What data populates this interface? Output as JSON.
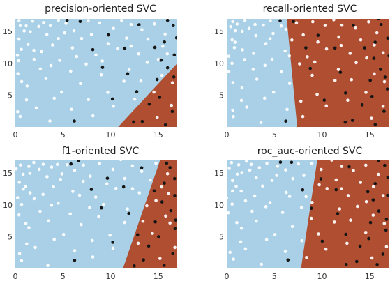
{
  "chart_data": [
    {
      "type": "scatter",
      "title": "precision-oriented SVC",
      "xlim": [
        0,
        17
      ],
      "ylim": [
        0,
        17
      ],
      "xticks": [
        0,
        5,
        10,
        15
      ],
      "yticks": [
        5,
        10,
        15
      ],
      "xtick_labels": [
        "0",
        "5",
        "10",
        "15"
      ],
      "ytick_labels": [
        "5",
        "10",
        "15"
      ],
      "boundary": [
        [
          10.8,
          0
        ],
        [
          17,
          10
        ]
      ],
      "positive_side": "right"
    },
    {
      "type": "scatter",
      "title": "recall-oriented SVC",
      "xlim": [
        0,
        17
      ],
      "ylim": [
        0,
        17
      ],
      "xticks": [
        0,
        5,
        10,
        15
      ],
      "yticks": [
        5,
        10,
        15
      ],
      "xtick_labels": [
        "0",
        "5",
        "10",
        "15"
      ],
      "ytick_labels": [
        "5",
        "10",
        "15"
      ],
      "boundary": [
        [
          7.4,
          0
        ],
        [
          6.3,
          17
        ]
      ],
      "positive_side": "right"
    },
    {
      "type": "scatter",
      "title": "f1-oriented SVC",
      "xlim": [
        0,
        17
      ],
      "ylim": [
        0,
        17
      ],
      "xticks": [
        0,
        5,
        10,
        15
      ],
      "yticks": [
        5,
        10,
        15
      ],
      "xtick_labels": [
        "0",
        "5",
        "10",
        "15"
      ],
      "ytick_labels": [
        "5",
        "10",
        "15"
      ],
      "boundary": [
        [
          11.3,
          0
        ],
        [
          15.2,
          17
        ]
      ],
      "positive_side": "right"
    },
    {
      "type": "scatter",
      "title": "roc_auc-oriented SVC",
      "xlim": [
        0,
        17
      ],
      "ylim": [
        0,
        17
      ],
      "xticks": [
        0,
        5,
        10,
        15
      ],
      "yticks": [
        5,
        10,
        15
      ],
      "xtick_labels": [
        "0",
        "5",
        "10",
        "15"
      ],
      "ytick_labels": [
        "5",
        "10",
        "15"
      ],
      "boundary": [
        [
          7.8,
          0
        ],
        [
          9.5,
          17
        ]
      ],
      "positive_side": "right"
    }
  ],
  "colors": {
    "negative_region": "#a9d0e6",
    "positive_region": "#b04e32",
    "negative_points": "#ffffff",
    "positive_points": "#151515"
  },
  "points": {
    "negative": [
      [
        0.3,
        15.8
      ],
      [
        0.6,
        16.5
      ],
      [
        0.9,
        14.9
      ],
      [
        1.2,
        16.1
      ],
      [
        0.4,
        13.6
      ],
      [
        1.5,
        15.2
      ],
      [
        0.8,
        12.4
      ],
      [
        1.9,
        16.7
      ],
      [
        0.2,
        11.3
      ],
      [
        1.1,
        13.1
      ],
      [
        2.3,
        15.6
      ],
      [
        0.5,
        10.2
      ],
      [
        1.7,
        12.0
      ],
      [
        2.8,
        16.3
      ],
      [
        0.3,
        8.6
      ],
      [
        3.1,
        14.3
      ],
      [
        2.0,
        10.8
      ],
      [
        3.6,
        15.9
      ],
      [
        4.0,
        12.9
      ],
      [
        4.4,
        16.6
      ],
      [
        2.6,
        9.1
      ],
      [
        5.1,
        14.7
      ],
      [
        4.7,
        10.5
      ],
      [
        5.5,
        16.1
      ],
      [
        3.3,
        7.6
      ],
      [
        6.0,
        12.2
      ],
      [
        6.4,
        15.3
      ],
      [
        1.4,
        6.4
      ],
      [
        7.0,
        13.9
      ],
      [
        7.4,
        16.5
      ],
      [
        5.7,
        8.8
      ],
      [
        8.1,
        14.6
      ],
      [
        8.5,
        11.1
      ],
      [
        9.0,
        16.3
      ],
      [
        6.8,
        6.7
      ],
      [
        9.5,
        13.3
      ],
      [
        10.1,
        15.7
      ],
      [
        4.1,
        4.6
      ],
      [
        10.6,
        12.4
      ],
      [
        11.1,
        16.9
      ],
      [
        8.8,
        8.1
      ],
      [
        11.7,
        14.1
      ],
      [
        12.3,
        16.2
      ],
      [
        2.1,
        3.2
      ],
      [
        12.8,
        11.7
      ],
      [
        13.4,
        15.4
      ],
      [
        9.7,
        5.3
      ],
      [
        14.1,
        13.7
      ],
      [
        6.1,
        2.6
      ],
      [
        14.7,
        16.4
      ],
      [
        0.7,
        1.4
      ],
      [
        11.8,
        9.2
      ],
      [
        3.6,
        0.7
      ],
      [
        8.2,
        1.7
      ],
      [
        15.3,
        12.8
      ],
      [
        13.2,
        7.4
      ],
      [
        5.0,
        5.4
      ],
      [
        10.4,
        3.1
      ],
      [
        7.6,
        9.7
      ],
      [
        12.7,
        4.2
      ],
      [
        15.6,
        8.3
      ],
      [
        14.4,
        5.6
      ],
      [
        16.2,
        11.6
      ],
      [
        16.6,
        3.4
      ],
      [
        15.1,
        1.6
      ],
      [
        13.8,
        9.9
      ],
      [
        1.3,
        4.1
      ],
      [
        2.8,
        11.6
      ],
      [
        4.6,
        13.8
      ],
      [
        9.2,
        10.3
      ],
      [
        11.4,
        7.2
      ],
      [
        6.6,
        11.3
      ],
      [
        0.9,
        7.1
      ],
      [
        3.9,
        9.8
      ],
      [
        12.1,
        12.6
      ],
      [
        15.9,
        14.8
      ],
      [
        16.4,
        6.9
      ],
      [
        0.4,
        2.6
      ],
      [
        7.9,
        4.2
      ],
      [
        14.9,
        10.7
      ]
    ],
    "positive": [
      [
        5.6,
        16.6
      ],
      [
        6.8,
        16.8
      ],
      [
        8.2,
        12.2
      ],
      [
        16.4,
        16.1
      ],
      [
        9.7,
        14.3
      ],
      [
        13.1,
        15.9
      ],
      [
        11.3,
        12.6
      ],
      [
        16.7,
        14.2
      ],
      [
        14.7,
        12.3
      ],
      [
        16.1,
        16.8
      ],
      [
        15.8,
        13.3
      ],
      [
        9.0,
        9.3
      ],
      [
        12.6,
        5.4
      ],
      [
        16.6,
        7.8
      ],
      [
        14.2,
        3.6
      ],
      [
        16.9,
        6.1
      ],
      [
        15.5,
        10.6
      ],
      [
        16.3,
        2.3
      ],
      [
        13.4,
        1.1
      ],
      [
        15.1,
        4.8
      ],
      [
        11.8,
        8.6
      ],
      [
        16.8,
        11.4
      ],
      [
        12.3,
        0.6
      ],
      [
        14.9,
        7.4
      ],
      [
        10.2,
        4.3
      ],
      [
        16.2,
        9.2
      ],
      [
        6.2,
        1.1
      ],
      [
        15.6,
        0.4
      ]
    ]
  }
}
